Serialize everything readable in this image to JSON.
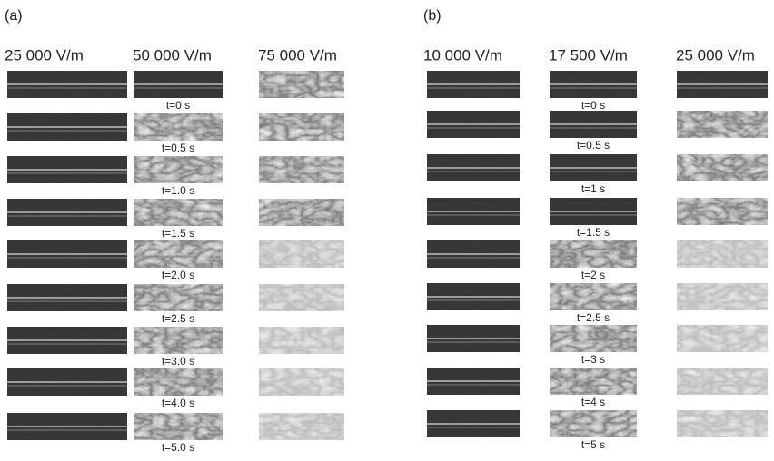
{
  "panels": [
    {
      "label": "(a)",
      "columns": [
        "25 000 V/m",
        "50 000 V/m",
        "75 000 V/m"
      ],
      "times": [
        "t=0 s",
        "t=0.5 s",
        "t=1.0 s",
        "t=1.5 s",
        "t=2.0 s",
        "t=2.5 s",
        "t=3.0 s",
        "t=4.0 s",
        "t=5.0 s"
      ]
    },
    {
      "label": "(b)",
      "columns": [
        "10 000 V/m",
        "17 500 V/m",
        "25 000 V/m"
      ],
      "times": [
        "t=0 s",
        "t=0.5 s",
        "t=1 s",
        "t=1.5 s",
        "t=2 s",
        "t=2.5 s",
        "t=3 s",
        "t=4 s",
        "t=5 s"
      ]
    }
  ]
}
